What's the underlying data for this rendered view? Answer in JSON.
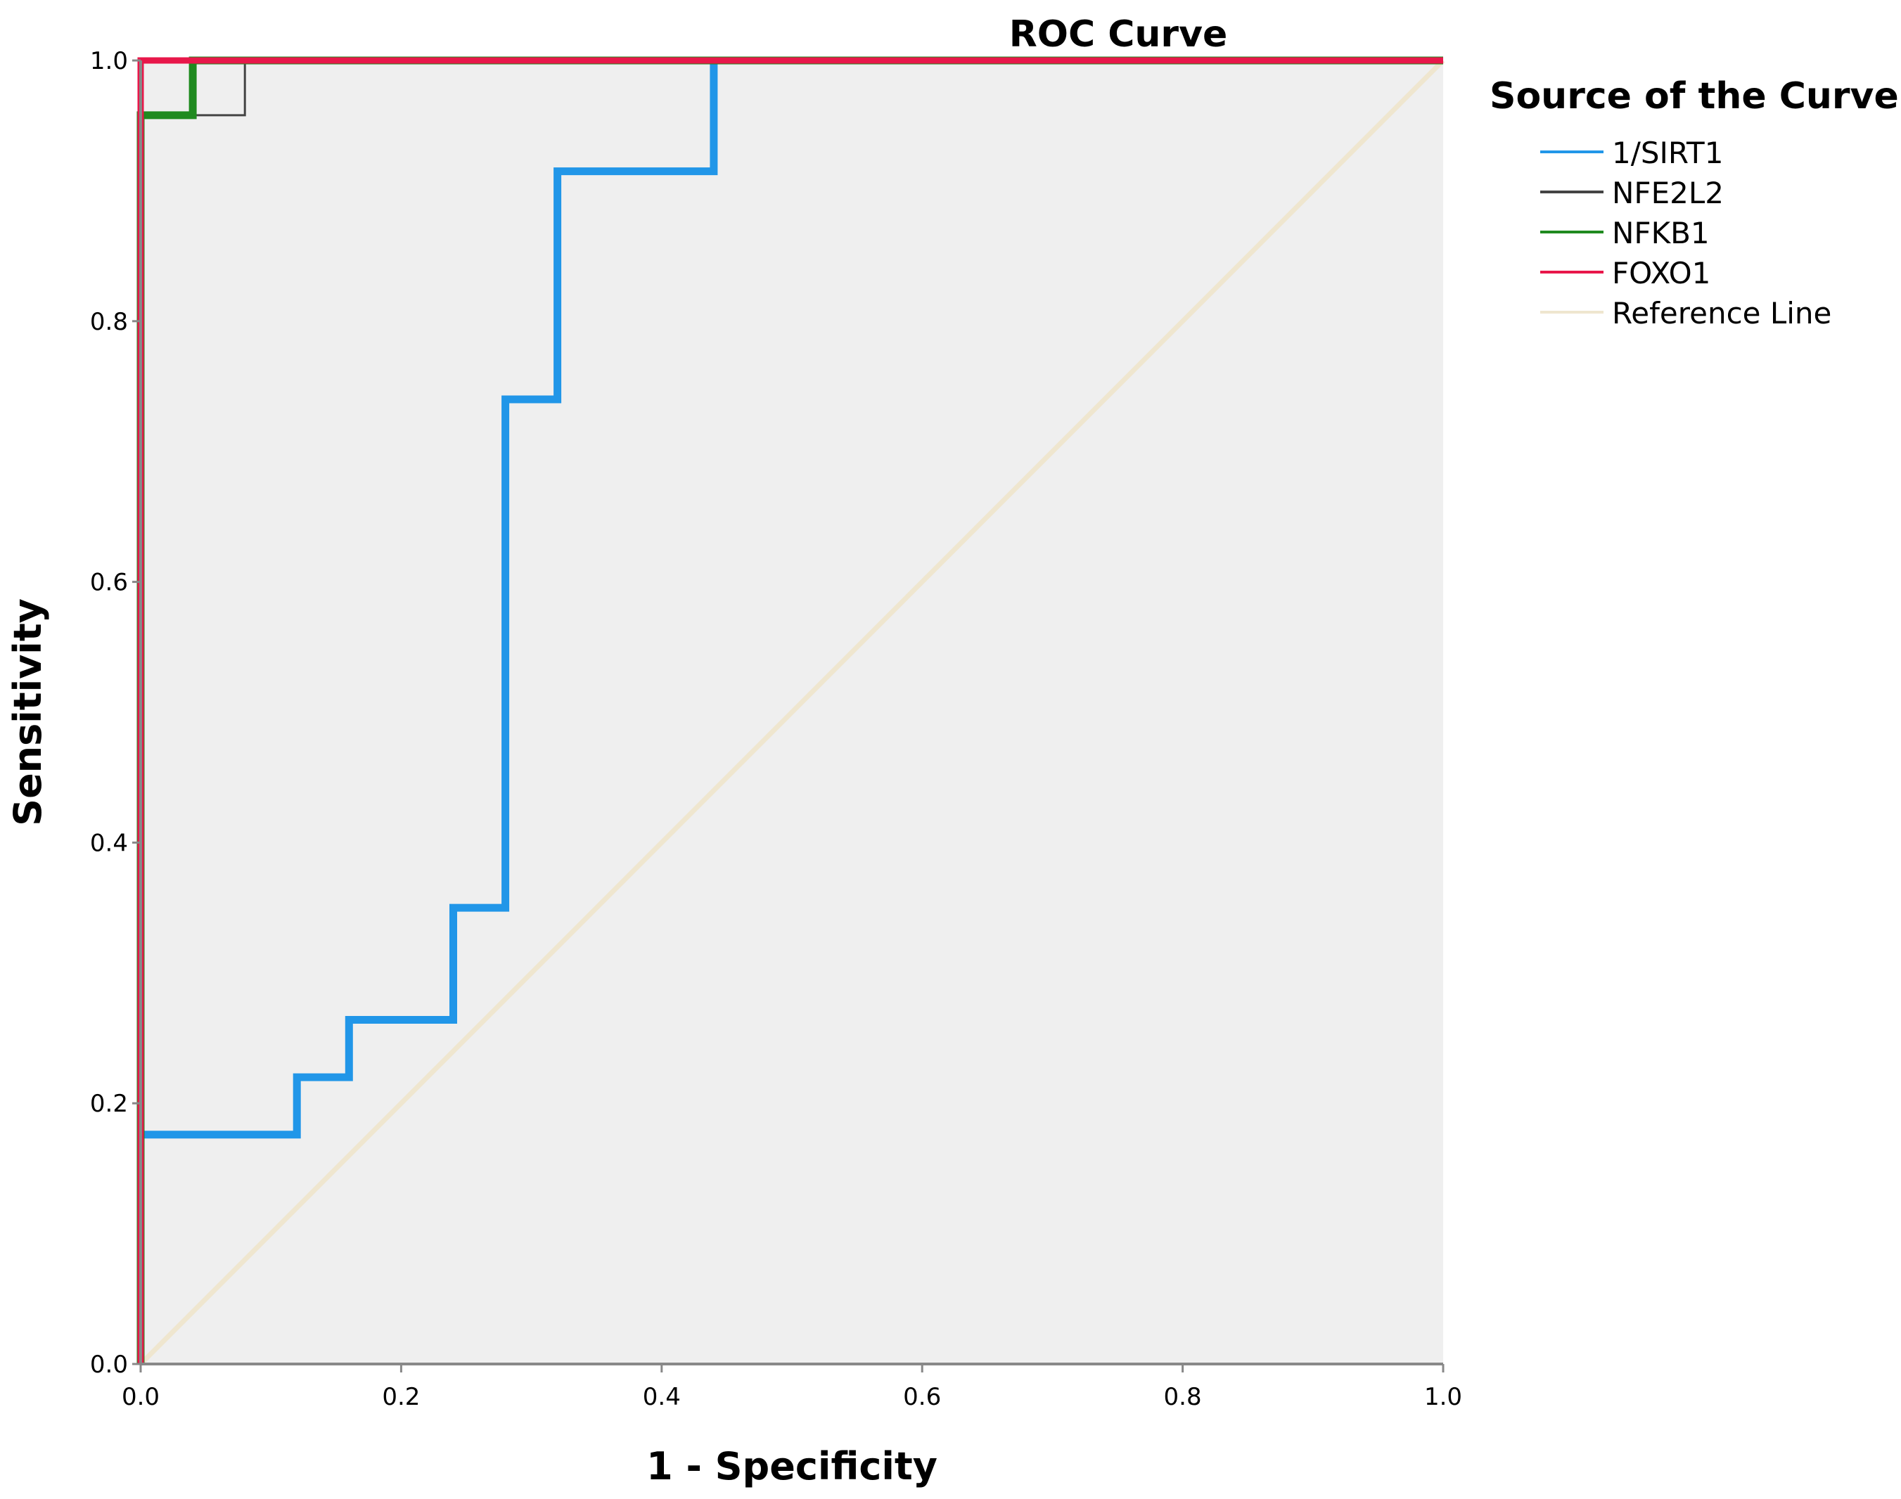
{
  "chart_data": {
    "type": "line",
    "title": "ROC Curve",
    "xlabel": "1 - Specificity",
    "ylabel": "Sensitivity",
    "xlim": [
      0,
      1
    ],
    "ylim": [
      0,
      1
    ],
    "x_ticks": [
      "0.0",
      "0.2",
      "0.4",
      "0.6",
      "0.8",
      "1.0"
    ],
    "y_ticks": [
      "0.0",
      "0.2",
      "0.4",
      "0.6",
      "0.8",
      "1.0"
    ],
    "grid": false,
    "legend_title": "Source of the Curve",
    "legend_position": "right",
    "colors": {
      "plot_background": "#efefef",
      "axis": "#888888"
    },
    "series": [
      {
        "name": "1/SIRT1",
        "color": "#2196e8",
        "x": [
          0,
          0,
          0.12,
          0.12,
          0.16,
          0.16,
          0.24,
          0.24,
          0.28,
          0.28,
          0.32,
          0.32,
          0.44,
          0.44,
          1
        ],
        "y": [
          0,
          0.176,
          0.176,
          0.22,
          0.22,
          0.264,
          0.264,
          0.35,
          0.35,
          0.74,
          0.74,
          0.915,
          0.915,
          1,
          1
        ]
      },
      {
        "name": "NFE2L2",
        "color": "#444444",
        "x": [
          0,
          0,
          0.08,
          0.08,
          1
        ],
        "y": [
          0,
          0.958,
          0.958,
          1,
          1
        ]
      },
      {
        "name": "NFKB1",
        "color": "#1f8a1f",
        "x": [
          0,
          0,
          0.04,
          0.04,
          1
        ],
        "y": [
          0,
          0.958,
          0.958,
          1,
          1
        ]
      },
      {
        "name": "FOXO1",
        "color": "#e8174a",
        "x": [
          0,
          0,
          1
        ],
        "y": [
          0,
          1,
          1
        ]
      },
      {
        "name": "Reference Line",
        "color": "#efe6cf",
        "x": [
          0,
          1
        ],
        "y": [
          0,
          1
        ]
      }
    ]
  }
}
